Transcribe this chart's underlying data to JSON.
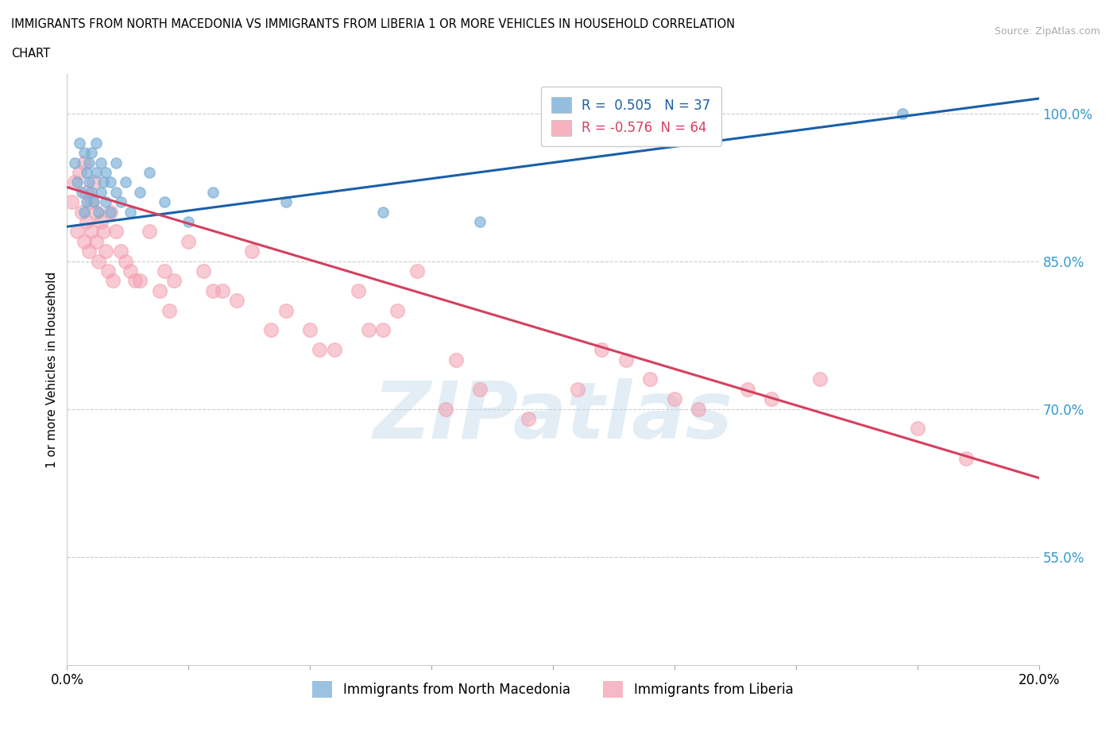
{
  "title_line1": "IMMIGRANTS FROM NORTH MACEDONIA VS IMMIGRANTS FROM LIBERIA 1 OR MORE VEHICLES IN HOUSEHOLD CORRELATION",
  "title_line2": "CHART",
  "source": "Source: ZipAtlas.com",
  "ylabel": "1 or more Vehicles in Household",
  "xlim": [
    0.0,
    20.0
  ],
  "ylim": [
    44.0,
    104.0
  ],
  "yticks": [
    55.0,
    70.0,
    85.0,
    100.0
  ],
  "xticks": [
    0.0,
    2.5,
    5.0,
    7.5,
    10.0,
    12.5,
    15.0,
    17.5,
    20.0
  ],
  "blue_color": "#7aaed6",
  "pink_color": "#f4a0b0",
  "blue_line_color": "#1a5fa8",
  "pink_line_color": "#d44060",
  "R_blue": 0.505,
  "N_blue": 37,
  "R_pink": -0.576,
  "N_pink": 64,
  "legend_label_blue": "Immigrants from North Macedonia",
  "legend_label_pink": "Immigrants from Liberia",
  "watermark": "ZIPatlas",
  "watermark_color": "#b8d4e8",
  "blue_line_x0": 0.0,
  "blue_line_y0": 88.5,
  "blue_line_x1": 20.0,
  "blue_line_y1": 101.5,
  "pink_line_x0": 0.0,
  "pink_line_y0": 92.5,
  "pink_line_x1": 20.0,
  "pink_line_y1": 63.0,
  "blue_scatter_x": [
    0.15,
    0.2,
    0.25,
    0.3,
    0.35,
    0.35,
    0.4,
    0.4,
    0.45,
    0.45,
    0.5,
    0.5,
    0.55,
    0.6,
    0.6,
    0.65,
    0.7,
    0.7,
    0.75,
    0.8,
    0.8,
    0.9,
    0.9,
    1.0,
    1.0,
    1.1,
    1.2,
    1.3,
    1.5,
    1.7,
    2.0,
    2.5,
    3.0,
    4.5,
    6.5,
    8.5,
    17.2
  ],
  "blue_scatter_y": [
    95,
    93,
    97,
    92,
    96,
    90,
    94,
    91,
    93,
    95,
    92,
    96,
    91,
    94,
    97,
    90,
    95,
    92,
    93,
    91,
    94,
    90,
    93,
    92,
    95,
    91,
    93,
    90,
    92,
    94,
    91,
    89,
    92,
    91,
    90,
    89,
    100
  ],
  "pink_scatter_x": [
    0.1,
    0.15,
    0.2,
    0.25,
    0.3,
    0.35,
    0.35,
    0.4,
    0.4,
    0.45,
    0.5,
    0.5,
    0.55,
    0.6,
    0.6,
    0.65,
    0.7,
    0.75,
    0.8,
    0.85,
    0.9,
    0.95,
    1.0,
    1.1,
    1.2,
    1.3,
    1.5,
    1.7,
    1.9,
    2.0,
    2.2,
    2.5,
    2.8,
    3.0,
    3.5,
    3.8,
    4.2,
    4.5,
    5.0,
    5.5,
    6.0,
    6.2,
    6.8,
    7.2,
    8.0,
    8.5,
    9.5,
    10.5,
    11.5,
    12.0,
    13.0,
    14.0,
    14.5,
    15.5,
    17.5,
    18.5,
    11.0,
    7.8,
    6.5,
    5.2,
    3.2,
    2.1,
    1.4,
    12.5
  ],
  "pink_scatter_y": [
    91,
    93,
    88,
    94,
    90,
    87,
    95,
    89,
    92,
    86,
    91,
    88,
    93,
    87,
    90,
    85,
    89,
    88,
    86,
    84,
    90,
    83,
    88,
    86,
    85,
    84,
    83,
    88,
    82,
    84,
    83,
    87,
    84,
    82,
    81,
    86,
    78,
    80,
    78,
    76,
    82,
    78,
    80,
    84,
    75,
    72,
    69,
    72,
    75,
    73,
    70,
    72,
    71,
    73,
    68,
    65,
    76,
    70,
    78,
    76,
    82,
    80,
    83,
    71
  ],
  "blue_dot_size": 90,
  "pink_dot_size": 160
}
